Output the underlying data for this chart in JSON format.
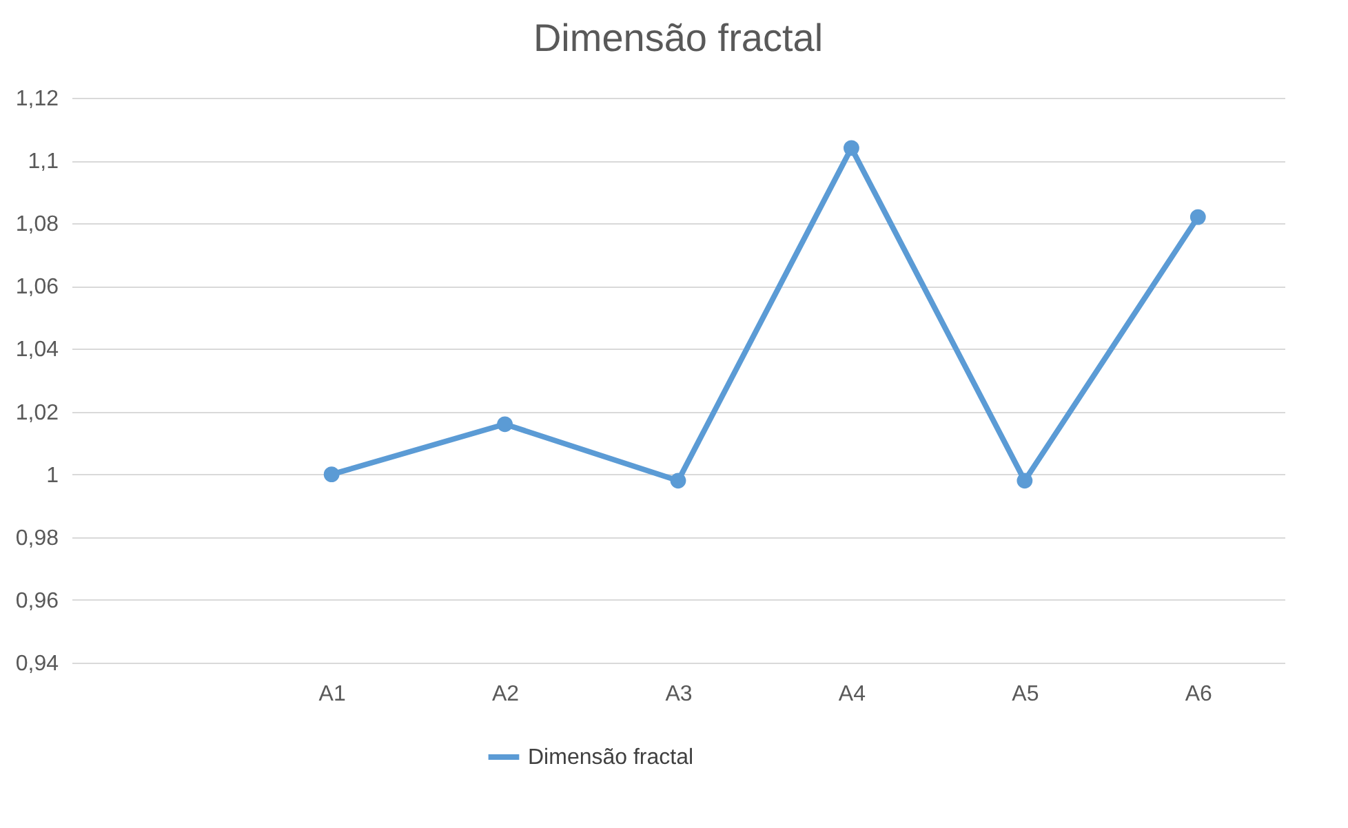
{
  "chart_data": {
    "type": "line",
    "title": "Dimensão fractal",
    "categories": [
      null,
      "A1",
      "A2",
      "A3",
      "A4",
      "A5",
      "A6"
    ],
    "series": [
      {
        "name": "Dimensão fractal",
        "color": "#5b9bd5",
        "values": [
          null,
          1.0,
          1.016,
          0.998,
          1.104,
          0.998,
          1.082
        ]
      }
    ],
    "ylim": [
      0.94,
      1.12
    ],
    "yticks": [
      {
        "value": 0.94,
        "label": "0,94"
      },
      {
        "value": 0.96,
        "label": "0,96"
      },
      {
        "value": 0.98,
        "label": "0,98"
      },
      {
        "value": 1,
        "label": "1"
      },
      {
        "value": 1.02,
        "label": "1,02"
      },
      {
        "value": 1.04,
        "label": "1,04"
      },
      {
        "value": 1.06,
        "label": "1,06"
      },
      {
        "value": 1.08,
        "label": "1,08"
      },
      {
        "value": 1.1,
        "label": "1,1"
      },
      {
        "value": 1.12,
        "label": "1,12"
      }
    ],
    "grid": "y",
    "legend": "bottom",
    "marker": "circle",
    "line_style": "solid"
  }
}
